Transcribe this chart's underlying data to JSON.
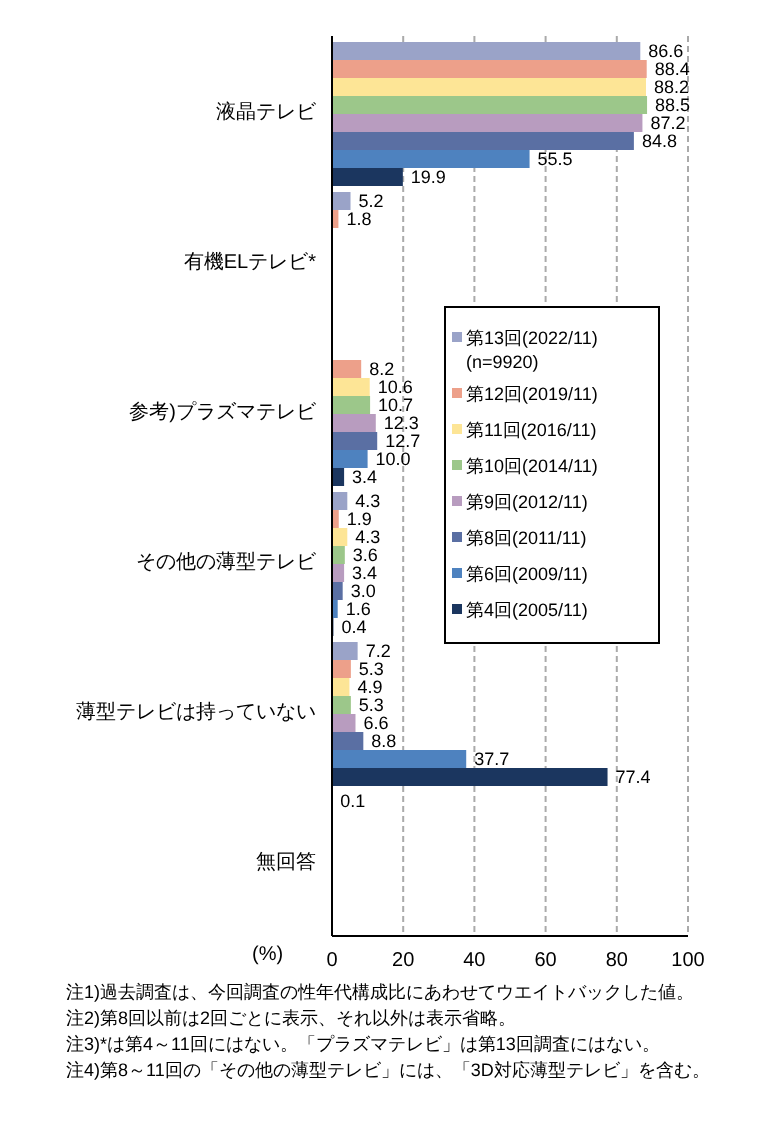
{
  "chart_data": {
    "type": "bar",
    "orientation": "horizontal",
    "categories": [
      "液晶テレビ",
      "有機ELテレビ*",
      "参考)プラズマテレビ",
      "その他の薄型テレビ",
      "薄型テレビは持っていない",
      "無回答"
    ],
    "series": [
      {
        "name": "第13回(2022/11) (n=9920)",
        "color": "#9aa3c8",
        "values": [
          86.6,
          5.2,
          null,
          4.3,
          7.2,
          0.1
        ],
        "value_labels": [
          "86.6",
          "5.2",
          null,
          "4.3",
          "7.2",
          "0.1"
        ]
      },
      {
        "name": "第12回(2019/11)",
        "color": "#eda08a",
        "values": [
          88.4,
          1.8,
          8.2,
          1.9,
          5.3,
          null
        ],
        "value_labels": [
          "88.4",
          "1.8",
          "8.2",
          "1.9",
          "5.3",
          null
        ]
      },
      {
        "name": "第11回(2016/11)",
        "color": "#fde596",
        "values": [
          88.2,
          null,
          10.6,
          4.3,
          4.9,
          null
        ],
        "value_labels": [
          "88.2",
          null,
          "10.6",
          "4.3",
          "4.9",
          null
        ]
      },
      {
        "name": "第10回(2014/11)",
        "color": "#9cc78a",
        "values": [
          88.5,
          null,
          10.7,
          3.6,
          5.3,
          null
        ],
        "value_labels": [
          "88.5",
          null,
          "10.7",
          "3.6",
          "5.3",
          null
        ]
      },
      {
        "name": "第9回(2012/11)",
        "color": "#b89cbf",
        "values": [
          87.2,
          null,
          12.3,
          3.4,
          6.6,
          null
        ],
        "value_labels": [
          "87.2",
          null,
          "12.3",
          "3.4",
          "6.6",
          null
        ]
      },
      {
        "name": "第8回(2011/11)",
        "color": "#5a6fa3",
        "values": [
          84.8,
          null,
          12.7,
          3.0,
          8.8,
          null
        ],
        "value_labels": [
          "84.8",
          null,
          "12.7",
          "3.0",
          "8.8",
          null
        ]
      },
      {
        "name": "第6回(2009/11)",
        "color": "#4e82bf",
        "values": [
          55.5,
          null,
          10.0,
          1.6,
          37.7,
          null
        ],
        "value_labels": [
          "55.5",
          null,
          "10.0",
          "1.6",
          "37.7",
          null
        ]
      },
      {
        "name": "第4回(2005/11)",
        "color": "#1b365f",
        "values": [
          19.9,
          null,
          3.4,
          0.4,
          77.4,
          null
        ],
        "value_labels": [
          "19.9",
          null,
          "3.4",
          "0.4",
          "77.4",
          null
        ]
      }
    ],
    "xlim": [
      0,
      100
    ],
    "xticks": [
      0,
      20,
      40,
      60,
      80,
      100
    ],
    "xlabel": "(%)",
    "grid": "x",
    "legend": "right",
    "annotations": [
      "注1)過去調査は、今回調査の性年代構成比にあわせてウエイトバックした値。",
      "注2)第8回以前は2回ごとに表示、それ以外は表示省略。",
      "注3)*は第4～11回にはない。「プラズマテレビ」は第13回調査にはない。",
      "注4)第8～11回の「その他の薄型テレビ」には、「3D対応薄型テレビ」を含む。"
    ]
  }
}
